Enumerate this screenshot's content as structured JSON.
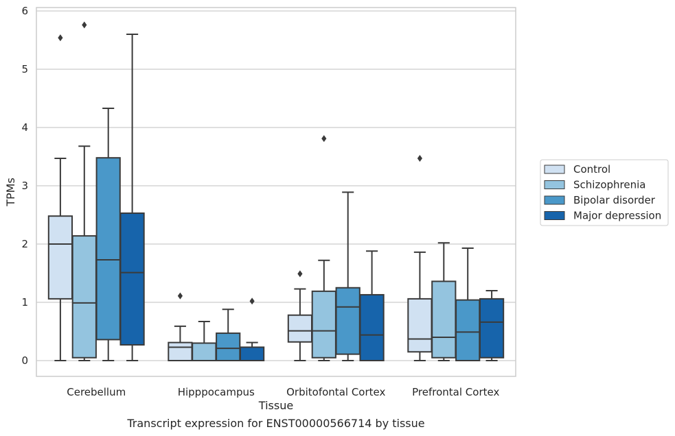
{
  "caption": "Transcript expression for ENST00000566714 by tissue",
  "chart_data": {
    "type": "boxplot",
    "xlabel": "Tissue",
    "ylabel": "TPMs",
    "ylim": [
      -0.28,
      6.05
    ],
    "yticks": [
      0,
      1,
      2,
      3,
      4,
      5,
      6
    ],
    "grid": true,
    "legend_position": "right",
    "categories": [
      "Cerebellum",
      "Hipppocampus",
      "Orbitofontal Cortex",
      "Prefrontal Cortex"
    ],
    "series": [
      {
        "name": "Control",
        "color": "#d0e1f2",
        "boxes": [
          {
            "q1": 1.06,
            "median": 2.0,
            "q3": 2.48,
            "whisker_low": 0.0,
            "whisker_high": 3.47,
            "outliers": [
              5.54
            ]
          },
          {
            "q1": 0.0,
            "median": 0.23,
            "q3": 0.31,
            "whisker_low": 0.0,
            "whisker_high": 0.59,
            "outliers": [
              1.11
            ]
          },
          {
            "q1": 0.32,
            "median": 0.51,
            "q3": 0.78,
            "whisker_low": 0.0,
            "whisker_high": 1.23,
            "outliers": [
              1.49
            ]
          },
          {
            "q1": 0.15,
            "median": 0.37,
            "q3": 1.06,
            "whisker_low": 0.0,
            "whisker_high": 1.86,
            "outliers": [
              3.47
            ]
          }
        ]
      },
      {
        "name": "Schizophrenia",
        "color": "#94c4df",
        "boxes": [
          {
            "q1": 0.05,
            "median": 0.99,
            "q3": 2.14,
            "whisker_low": 0.0,
            "whisker_high": 3.68,
            "outliers": [
              5.76
            ]
          },
          {
            "q1": 0.0,
            "median": 0.0,
            "q3": 0.3,
            "whisker_low": 0.0,
            "whisker_high": 0.67,
            "outliers": []
          },
          {
            "q1": 0.05,
            "median": 0.51,
            "q3": 1.19,
            "whisker_low": 0.0,
            "whisker_high": 1.72,
            "outliers": [
              3.81
            ]
          },
          {
            "q1": 0.05,
            "median": 0.4,
            "q3": 1.36,
            "whisker_low": 0.0,
            "whisker_high": 2.02,
            "outliers": []
          }
        ]
      },
      {
        "name": "Bipolar disorder",
        "color": "#4a98c9",
        "boxes": [
          {
            "q1": 0.36,
            "median": 1.73,
            "q3": 3.48,
            "whisker_low": 0.0,
            "whisker_high": 4.33,
            "outliers": []
          },
          {
            "q1": 0.0,
            "median": 0.21,
            "q3": 0.47,
            "whisker_low": 0.0,
            "whisker_high": 0.88,
            "outliers": []
          },
          {
            "q1": 0.11,
            "median": 0.92,
            "q3": 1.25,
            "whisker_low": 0.0,
            "whisker_high": 2.89,
            "outliers": []
          },
          {
            "q1": 0.0,
            "median": 0.49,
            "q3": 1.04,
            "whisker_low": 0.0,
            "whisker_high": 1.93,
            "outliers": []
          }
        ]
      },
      {
        "name": "Major depression",
        "color": "#1764ab",
        "boxes": [
          {
            "q1": 0.27,
            "median": 1.51,
            "q3": 2.53,
            "whisker_low": 0.0,
            "whisker_high": 5.6,
            "outliers": []
          },
          {
            "q1": 0.0,
            "median": 0.0,
            "q3": 0.23,
            "whisker_low": 0.0,
            "whisker_high": 0.31,
            "outliers": [
              1.02
            ]
          },
          {
            "q1": 0.0,
            "median": 0.44,
            "q3": 1.13,
            "whisker_low": 0.0,
            "whisker_high": 1.88,
            "outliers": []
          },
          {
            "q1": 0.05,
            "median": 0.66,
            "q3": 1.06,
            "whisker_low": 0.0,
            "whisker_high": 1.2,
            "outliers": []
          }
        ]
      }
    ]
  }
}
